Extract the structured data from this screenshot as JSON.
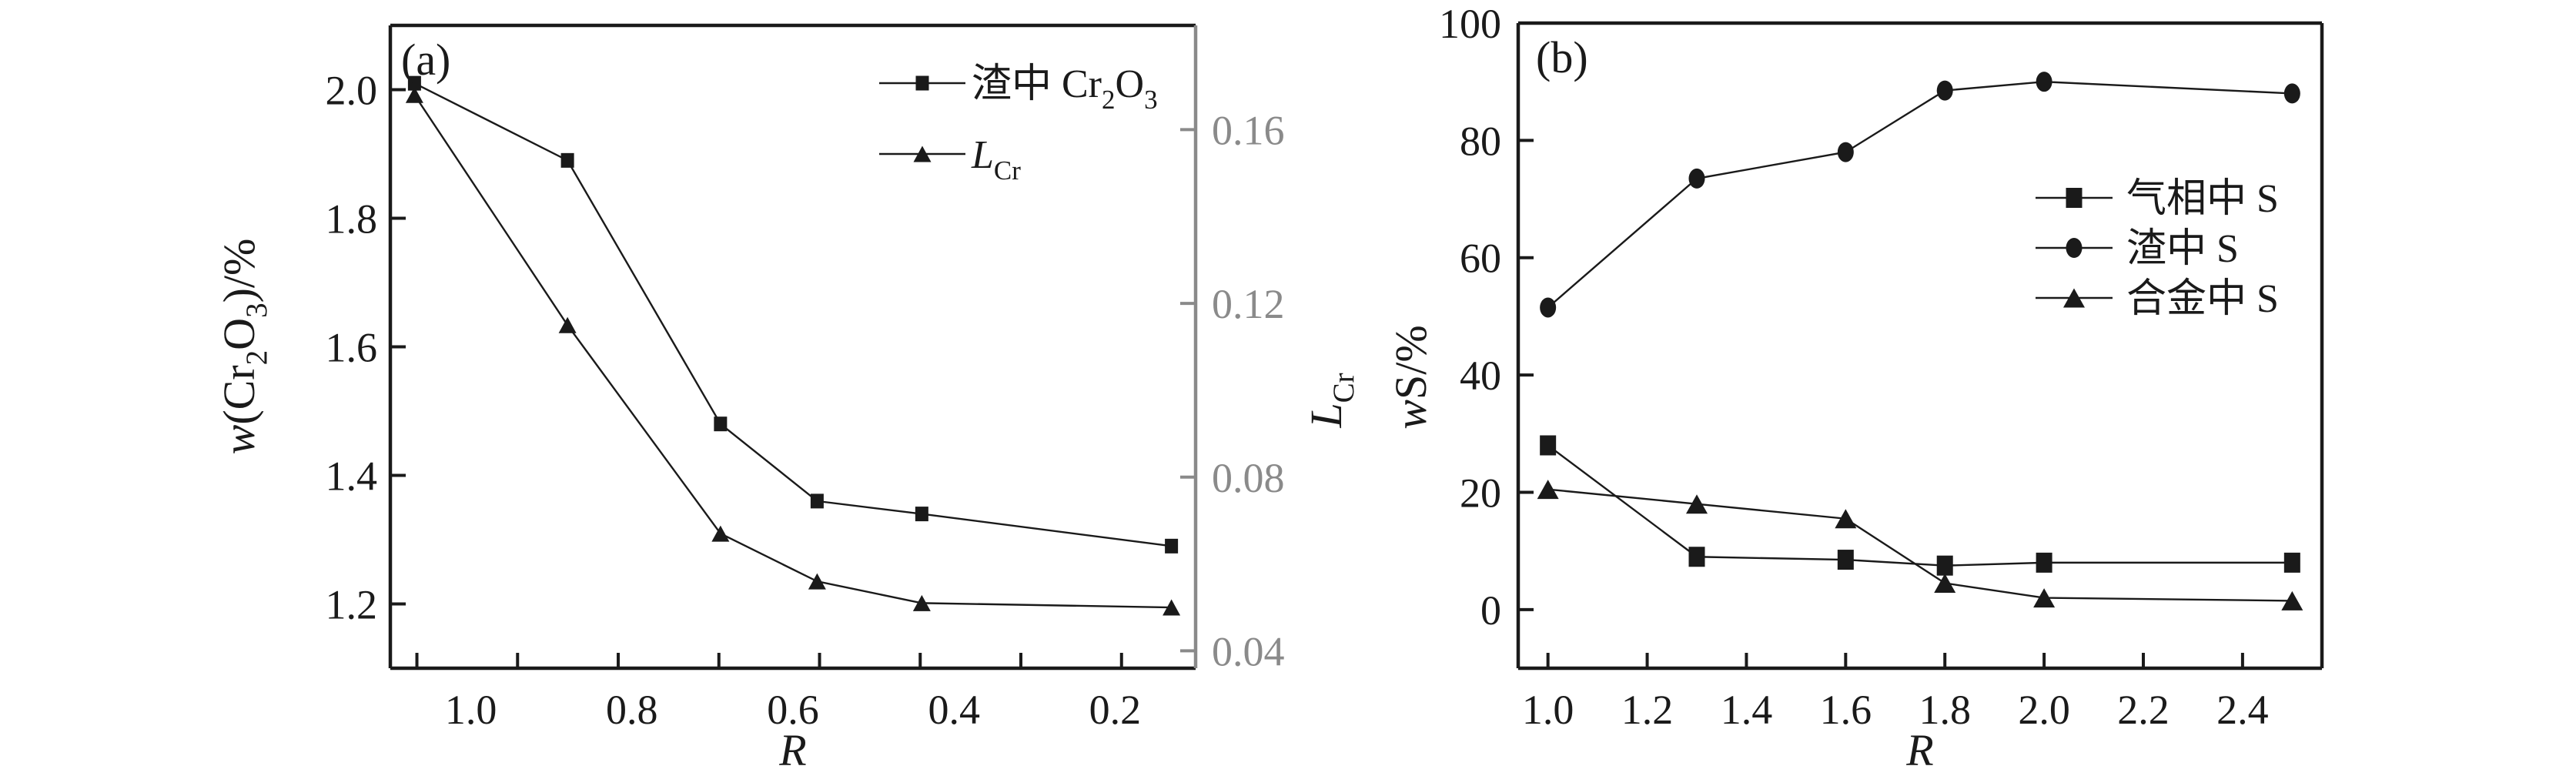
{
  "figure": {
    "kind": "two-panel scientific line figure",
    "colors": {
      "background": "#ffffff",
      "ink": "#1a1a1a",
      "secondary_axis": "#8a8a8a"
    }
  },
  "chart_data": [
    {
      "type": "line",
      "panel_label": "(a)",
      "xlabel": "R",
      "ylabel_left": "w(Cr₂O₃)/%",
      "ylabel_right": "LCr",
      "x_reversed": true,
      "xlim": [
        1.1,
        0.1
      ],
      "ylim_left": [
        1.1,
        2.1
      ],
      "ylim_right": [
        0.036,
        0.184
      ],
      "grid": false,
      "legend_position": "upper-right-inside",
      "xtick_labels": [
        "1.0",
        "0.8",
        "0.6",
        "0.4",
        "0.2"
      ],
      "xtick_label_values": [
        1.0,
        0.8,
        0.6,
        0.4,
        0.2
      ],
      "xtick_mark_values": [
        1.067,
        0.942,
        0.817,
        0.692,
        0.567,
        0.442,
        0.317,
        0.192
      ],
      "ytick_labels_left": [
        "1.2",
        "1.4",
        "1.6",
        "1.8",
        "2.0"
      ],
      "ytick_values_left": [
        1.2,
        1.4,
        1.6,
        1.8,
        2.0
      ],
      "ytick_labels_right": [
        "0.04",
        "0.08",
        "0.12",
        "0.16"
      ],
      "ytick_values_right": [
        0.04,
        0.08,
        0.12,
        0.16
      ],
      "xlabel_rich": [
        {
          "t": "R",
          "style": "italic"
        }
      ],
      "ylabel_left_rich": [
        {
          "t": "w",
          "style": "italic"
        },
        {
          "t": "(Cr"
        },
        {
          "t": "2",
          "pos": "sub"
        },
        {
          "t": "O"
        },
        {
          "t": "3",
          "pos": "sub"
        },
        {
          "t": ")/%"
        }
      ],
      "ylabel_right_rich": [
        {
          "t": "L",
          "style": "italic"
        },
        {
          "t": "Cr",
          "pos": "sub"
        }
      ],
      "series": [
        {
          "key": "slag-cr2o3",
          "name": "渣中 Cr₂O₃",
          "marker": "square",
          "yaxis": "left",
          "x": [
            1.07,
            0.88,
            0.69,
            0.57,
            0.44,
            0.13
          ],
          "y": [
            2.01,
            1.89,
            1.48,
            1.36,
            1.34,
            1.29
          ],
          "label_rich": [
            {
              "t": "渣中 Cr"
            },
            {
              "t": "2",
              "pos": "sub"
            },
            {
              "t": "O"
            },
            {
              "t": "3",
              "pos": "sub"
            }
          ]
        },
        {
          "key": "lcr",
          "name": "LCr",
          "marker": "triangle",
          "yaxis": "right",
          "x": [
            1.07,
            0.88,
            0.69,
            0.57,
            0.44,
            0.13
          ],
          "y": [
            0.168,
            0.115,
            0.067,
            0.056,
            0.051,
            0.05
          ],
          "label_rich": [
            {
              "t": "L",
              "style": "italic"
            },
            {
              "t": "Cr",
              "pos": "sub"
            }
          ]
        }
      ]
    },
    {
      "type": "line",
      "panel_label": "(b)",
      "xlabel": "R",
      "ylabel_left": "wS/%",
      "x_reversed": false,
      "xlim": [
        0.94,
        2.56
      ],
      "ylim_left": [
        -10,
        100
      ],
      "grid": false,
      "legend_position": "middle-right-inside",
      "xtick_labels": [
        "1.0",
        "1.2",
        "1.4",
        "1.6",
        "1.8",
        "2.0",
        "2.2",
        "2.4"
      ],
      "xtick_label_values": [
        1.0,
        1.2,
        1.4,
        1.6,
        1.8,
        2.0,
        2.2,
        2.4
      ],
      "xtick_mark_values": [
        1.0,
        1.2,
        1.4,
        1.6,
        1.8,
        2.0,
        2.2,
        2.4
      ],
      "ytick_labels_left": [
        "0",
        "20",
        "40",
        "60",
        "80",
        "100"
      ],
      "ytick_values_left": [
        0,
        20,
        40,
        60,
        80,
        100
      ],
      "xlabel_rich": [
        {
          "t": "R",
          "style": "italic"
        }
      ],
      "ylabel_left_rich": [
        {
          "t": "w",
          "style": "italic"
        },
        {
          "t": "S/%"
        }
      ],
      "series": [
        {
          "key": "gas-s",
          "name": "气相中 S",
          "marker": "square",
          "yaxis": "left",
          "x": [
            1.0,
            1.3,
            1.6,
            1.8,
            2.0,
            2.5
          ],
          "y": [
            28,
            9,
            8.5,
            7.5,
            8,
            8
          ],
          "label_rich": [
            {
              "t": "气相中 S"
            }
          ]
        },
        {
          "key": "slag-s",
          "name": "渣中 S",
          "marker": "circle",
          "yaxis": "left",
          "x": [
            1.0,
            1.3,
            1.6,
            1.8,
            2.0,
            2.5
          ],
          "y": [
            51.5,
            73.5,
            78,
            88.5,
            90,
            88
          ],
          "label_rich": [
            {
              "t": "渣中 S"
            }
          ]
        },
        {
          "key": "alloy-s",
          "name": "合金中 S",
          "marker": "triangle",
          "yaxis": "left",
          "x": [
            1.0,
            1.3,
            1.6,
            1.8,
            2.0,
            2.5
          ],
          "y": [
            20.5,
            18,
            15.5,
            4.5,
            2,
            1.5
          ],
          "label_rich": [
            {
              "t": "合金中 S"
            }
          ]
        }
      ]
    }
  ]
}
